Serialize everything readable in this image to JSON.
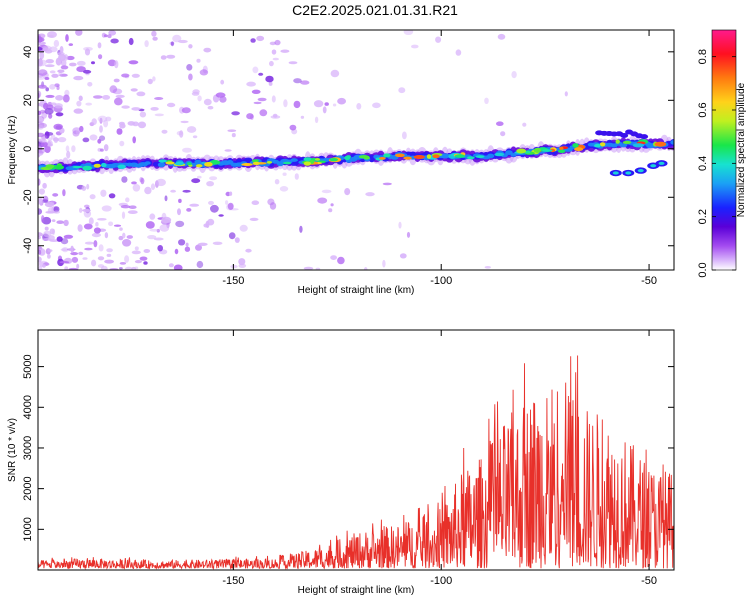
{
  "title": "C2E2.2025.021.01.31.R21",
  "colors": {
    "snr_line": "#e8302a",
    "colorbar_stops": [
      "#ffffff",
      "#b36cf5",
      "#4a00e0",
      "#1a2cff",
      "#17c9f0",
      "#19e66a",
      "#d6ef1e",
      "#ff9a10",
      "#ff1030",
      "#ff1493"
    ]
  },
  "chart_data": [
    {
      "type": "heatmap",
      "name": "spectrogram",
      "xlabel": "Height of straight line (km)",
      "ylabel": "Frequency (Hz)",
      "xlim": [
        -197,
        -44
      ],
      "ylim": [
        -50,
        49
      ],
      "xticks": [
        -150,
        -100,
        -50
      ],
      "yticks": [
        -40,
        -20,
        0,
        20,
        40
      ],
      "colorbar": {
        "label": "Normalized spectral amplitude",
        "range": [
          0,
          0.9
        ],
        "ticks": [
          0.0,
          0.2,
          0.4,
          0.6,
          0.8
        ]
      },
      "ridge": {
        "description_points_x": [
          -197,
          -170,
          -150,
          -130,
          -110,
          -90,
          -70,
          -60,
          -50,
          -44
        ],
        "description_points_y": [
          -8,
          -6,
          -6,
          -5,
          -3,
          -3,
          0,
          2,
          2,
          2
        ]
      }
    },
    {
      "type": "line",
      "name": "snr",
      "xlabel": "Height of straight line (km)",
      "ylabel": "SNR (10 * v/v)",
      "xlim": [
        -197,
        -44
      ],
      "ylim": [
        0,
        5900
      ],
      "xticks": [
        -150,
        -100,
        -50
      ],
      "yticks": [
        1000,
        2000,
        3000,
        4000,
        5000
      ],
      "envelope_x": [
        -197,
        -185,
        -170,
        -155,
        -140,
        -130,
        -120,
        -110,
        -100,
        -95,
        -90,
        -85,
        -80,
        -75,
        -70,
        -65,
        -60,
        -55,
        -50,
        -44
      ],
      "envelope_y": [
        200,
        250,
        200,
        220,
        250,
        500,
        900,
        1100,
        1500,
        2400,
        2800,
        3600,
        4200,
        4800,
        4600,
        4000,
        3800,
        3200,
        2600,
        2400
      ]
    }
  ]
}
